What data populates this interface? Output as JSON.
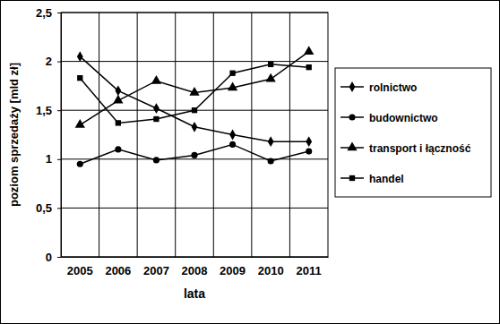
{
  "chart_data": {
    "type": "line",
    "x_label": "lata",
    "y_label": "poziom sprzedaży [mld zł]",
    "categories": [
      "2005",
      "2006",
      "2007",
      "2008",
      "2009",
      "2010",
      "2011"
    ],
    "series": [
      {
        "name": "rolnictwo",
        "color": "#000000",
        "marker": "diamond",
        "values": [
          2.05,
          1.7,
          1.52,
          1.33,
          1.25,
          1.18,
          1.18
        ]
      },
      {
        "name": "budownictwo",
        "color": "#000000",
        "marker": "circle",
        "values": [
          0.95,
          1.1,
          0.99,
          1.04,
          1.15,
          0.98,
          1.08
        ]
      },
      {
        "name": "transport i łączność",
        "color": "#000000",
        "marker": "triangle",
        "values": [
          1.35,
          1.6,
          1.8,
          1.68,
          1.73,
          1.82,
          2.1
        ]
      },
      {
        "name": "handel",
        "color": "#000000",
        "marker": "square",
        "values": [
          1.83,
          1.37,
          1.41,
          1.5,
          1.88,
          1.97,
          1.94
        ]
      }
    ],
    "ylim": [
      0,
      2.5
    ],
    "yticks": [
      0,
      {
        "value": 0.5,
        "label": "0,5"
      },
      1,
      {
        "value": 1.5,
        "label": "1,5"
      },
      2,
      {
        "value": 2.5,
        "label": "2,5"
      }
    ],
    "grid": true,
    "legend": "right"
  }
}
